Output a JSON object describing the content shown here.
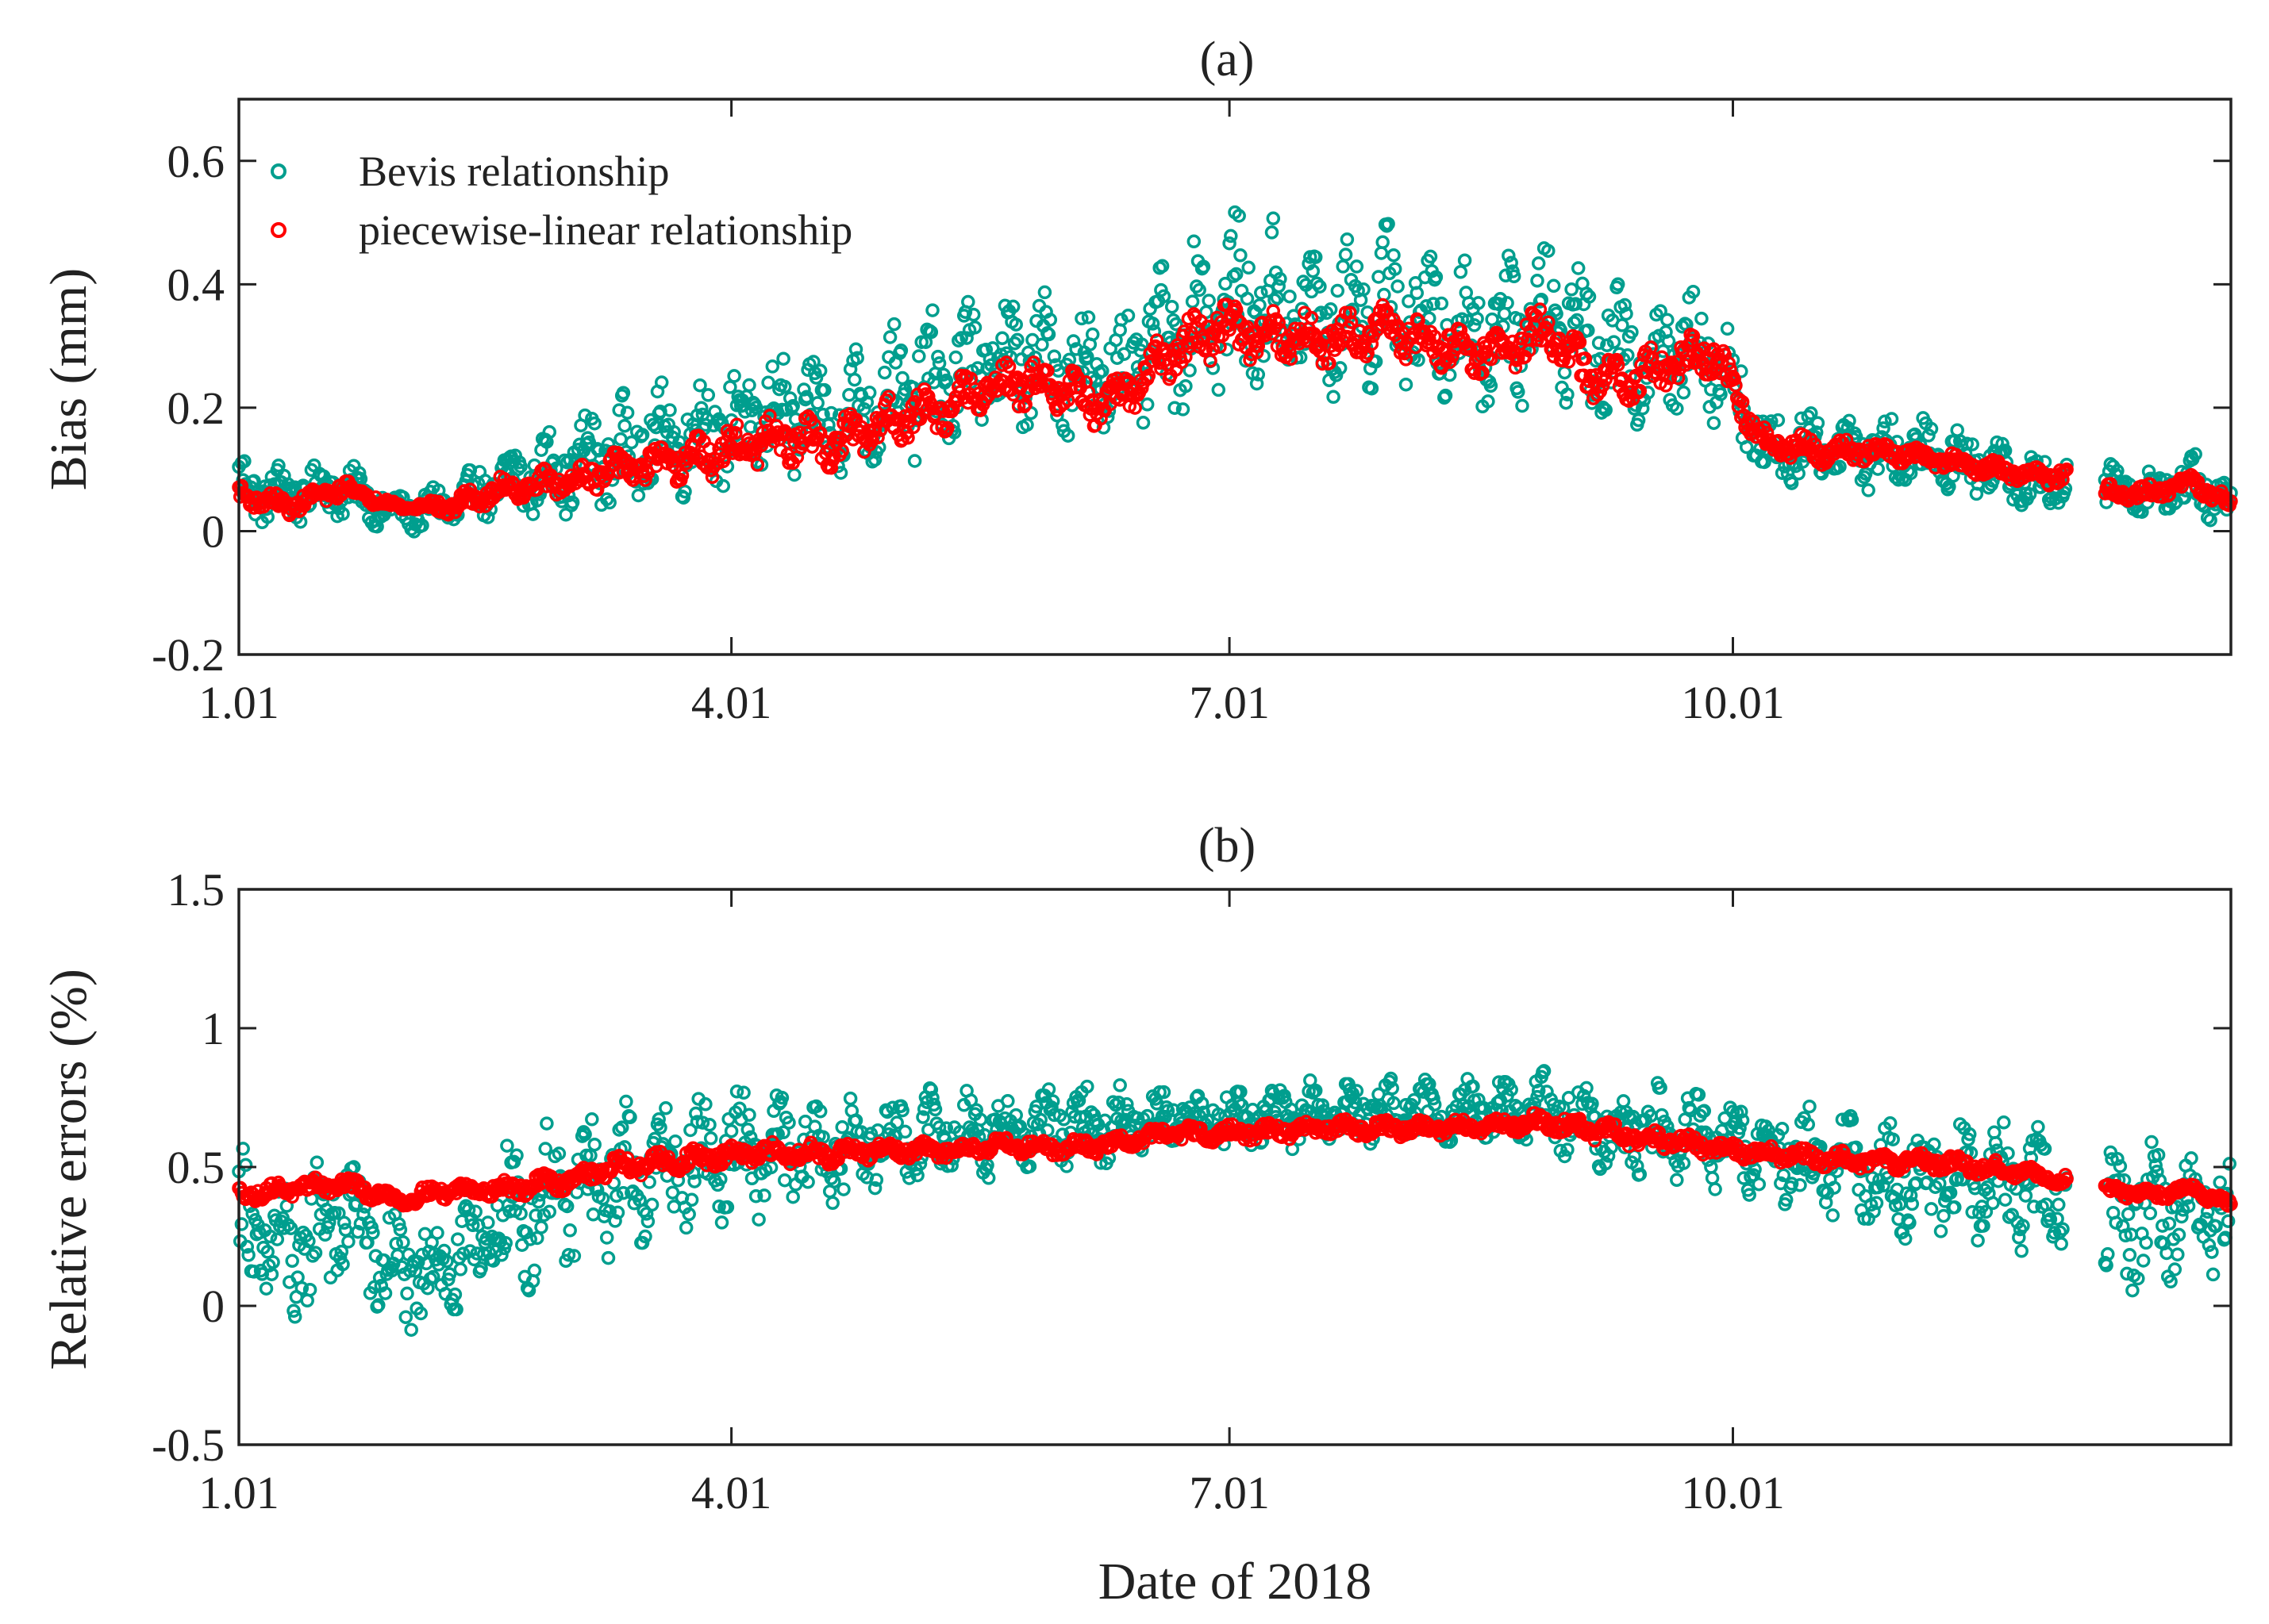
{
  "figure_xlabel": "Date of 2018",
  "colors": {
    "bevis": "#009e8e",
    "piecewise": "#ff0000",
    "axes": "#222222"
  },
  "chart_data": [
    {
      "id": "a",
      "type": "scatter",
      "title": "(a)",
      "xlabel": "",
      "ylabel": "Bias (mm)",
      "x_unit": "day of year 2018",
      "xlim": [
        1,
        365
      ],
      "ylim": [
        -0.2,
        0.7
      ],
      "x_ticks": [
        1,
        91,
        182,
        274
      ],
      "x_tick_labels": [
        "1.01",
        "4.01",
        "7.01",
        "10.01"
      ],
      "y_ticks": [
        -0.2,
        0,
        0.2,
        0.4,
        0.6
      ],
      "y_tick_labels": [
        "-0.2",
        "0",
        "0.2",
        "0.4",
        "0.6"
      ],
      "grid": false,
      "legend_position": "top-left",
      "data_gap_days": [
        335,
        342
      ],
      "series": [
        {
          "name": "Bevis relationship",
          "color": "#009e8e",
          "marker": "open-circle",
          "x": [
            1,
            10,
            20,
            30,
            40,
            50,
            60,
            70,
            80,
            90,
            100,
            110,
            120,
            130,
            140,
            150,
            160,
            170,
            180,
            190,
            200,
            210,
            220,
            230,
            240,
            250,
            260,
            270,
            280,
            290,
            300,
            310,
            320,
            330,
            335,
            342,
            350,
            358,
            365
          ],
          "center": [
            0.07,
            0.06,
            0.07,
            0.03,
            0.04,
            0.08,
            0.1,
            0.13,
            0.15,
            0.17,
            0.19,
            0.18,
            0.22,
            0.24,
            0.28,
            0.27,
            0.25,
            0.3,
            0.37,
            0.36,
            0.34,
            0.37,
            0.33,
            0.32,
            0.36,
            0.28,
            0.28,
            0.3,
            0.13,
            0.14,
            0.13,
            0.12,
            0.11,
            0.08,
            0.08,
            0.07,
            0.06,
            0.08,
            0.04
          ],
          "spread": [
            0.07,
            0.06,
            0.06,
            0.04,
            0.05,
            0.08,
            0.09,
            0.11,
            0.12,
            0.13,
            0.13,
            0.13,
            0.14,
            0.15,
            0.15,
            0.14,
            0.14,
            0.16,
            0.18,
            0.18,
            0.16,
            0.17,
            0.16,
            0.16,
            0.18,
            0.15,
            0.14,
            0.14,
            0.08,
            0.08,
            0.08,
            0.08,
            0.07,
            0.06,
            0.06,
            0.06,
            0.05,
            0.07,
            0.05
          ]
        },
        {
          "name": "piecewise-linear relationship",
          "color": "#ff0000",
          "marker": "open-circle",
          "x": [
            1,
            10,
            20,
            30,
            40,
            50,
            60,
            70,
            80,
            90,
            100,
            110,
            120,
            130,
            140,
            150,
            160,
            170,
            180,
            190,
            200,
            210,
            220,
            230,
            240,
            250,
            260,
            270,
            280,
            290,
            300,
            310,
            320,
            330,
            335,
            342,
            350,
            358,
            365
          ],
          "center": [
            0.06,
            0.04,
            0.07,
            0.04,
            0.04,
            0.07,
            0.08,
            0.1,
            0.11,
            0.13,
            0.15,
            0.14,
            0.18,
            0.2,
            0.24,
            0.24,
            0.2,
            0.28,
            0.33,
            0.32,
            0.31,
            0.33,
            0.3,
            0.29,
            0.32,
            0.24,
            0.26,
            0.29,
            0.14,
            0.13,
            0.13,
            0.12,
            0.1,
            0.09,
            0.09,
            0.06,
            0.06,
            0.08,
            0.04
          ],
          "spread": [
            0.02,
            0.02,
            0.02,
            0.01,
            0.02,
            0.03,
            0.03,
            0.04,
            0.04,
            0.05,
            0.05,
            0.05,
            0.05,
            0.05,
            0.05,
            0.05,
            0.05,
            0.05,
            0.06,
            0.06,
            0.05,
            0.05,
            0.05,
            0.05,
            0.06,
            0.05,
            0.05,
            0.05,
            0.03,
            0.03,
            0.02,
            0.02,
            0.02,
            0.02,
            0.02,
            0.02,
            0.02,
            0.02,
            0.02
          ]
        }
      ]
    },
    {
      "id": "b",
      "type": "scatter",
      "title": "(b)",
      "xlabel": "Date of 2018",
      "ylabel": "Relative errors (%)",
      "x_unit": "day of year 2018",
      "xlim": [
        1,
        365
      ],
      "ylim": [
        -0.5,
        1.5
      ],
      "x_ticks": [
        1,
        91,
        182,
        274
      ],
      "x_tick_labels": [
        "1.01",
        "4.01",
        "7.01",
        "10.01"
      ],
      "y_ticks": [
        -0.5,
        0,
        0.5,
        1,
        1.5
      ],
      "y_tick_labels": [
        "-0.5",
        "0",
        "0.5",
        "1",
        "1.5"
      ],
      "grid": false,
      "legend_position": "none",
      "data_gap_days": [
        335,
        342
      ],
      "series": [
        {
          "name": "Bevis relationship",
          "color": "#009e8e",
          "marker": "open-circle",
          "x": [
            1,
            10,
            20,
            30,
            40,
            50,
            60,
            70,
            80,
            90,
            100,
            110,
            120,
            130,
            140,
            150,
            160,
            170,
            180,
            190,
            200,
            210,
            220,
            230,
            240,
            250,
            260,
            270,
            280,
            290,
            300,
            310,
            320,
            330,
            335,
            342,
            350,
            358,
            365
          ],
          "center": [
            0.3,
            0.15,
            0.35,
            0.1,
            0.15,
            0.3,
            0.4,
            0.45,
            0.5,
            0.55,
            0.55,
            0.55,
            0.6,
            0.62,
            0.62,
            0.65,
            0.65,
            0.68,
            0.68,
            0.68,
            0.7,
            0.7,
            0.7,
            0.7,
            0.7,
            0.65,
            0.62,
            0.6,
            0.55,
            0.5,
            0.48,
            0.45,
            0.45,
            0.4,
            0.4,
            0.3,
            0.35,
            0.35,
            0.3
          ],
          "spread": [
            0.35,
            0.4,
            0.35,
            0.3,
            0.3,
            0.35,
            0.35,
            0.35,
            0.3,
            0.3,
            0.28,
            0.25,
            0.22,
            0.2,
            0.2,
            0.18,
            0.18,
            0.15,
            0.15,
            0.15,
            0.15,
            0.15,
            0.15,
            0.15,
            0.18,
            0.2,
            0.22,
            0.22,
            0.25,
            0.25,
            0.25,
            0.28,
            0.28,
            0.3,
            0.3,
            0.35,
            0.35,
            0.3,
            0.3
          ]
        },
        {
          "name": "piecewise-linear relationship",
          "color": "#ff0000",
          "marker": "open-circle",
          "x": [
            1,
            10,
            20,
            30,
            40,
            50,
            60,
            70,
            80,
            90,
            100,
            110,
            120,
            130,
            140,
            150,
            160,
            170,
            180,
            190,
            200,
            210,
            220,
            230,
            240,
            250,
            260,
            270,
            280,
            290,
            300,
            310,
            320,
            330,
            335,
            342,
            350,
            358,
            365
          ],
          "center": [
            0.4,
            0.42,
            0.44,
            0.38,
            0.42,
            0.42,
            0.45,
            0.5,
            0.52,
            0.54,
            0.55,
            0.55,
            0.56,
            0.56,
            0.58,
            0.57,
            0.58,
            0.62,
            0.62,
            0.63,
            0.64,
            0.64,
            0.64,
            0.65,
            0.66,
            0.63,
            0.6,
            0.57,
            0.55,
            0.53,
            0.52,
            0.52,
            0.5,
            0.47,
            0.45,
            0.42,
            0.4,
            0.42,
            0.36
          ],
          "spread": [
            0.04,
            0.04,
            0.04,
            0.04,
            0.04,
            0.04,
            0.05,
            0.05,
            0.05,
            0.05,
            0.05,
            0.05,
            0.04,
            0.04,
            0.04,
            0.04,
            0.04,
            0.04,
            0.04,
            0.04,
            0.04,
            0.04,
            0.04,
            0.04,
            0.05,
            0.05,
            0.05,
            0.04,
            0.04,
            0.04,
            0.04,
            0.04,
            0.04,
            0.03,
            0.03,
            0.03,
            0.03,
            0.03,
            0.03
          ]
        }
      ]
    }
  ]
}
